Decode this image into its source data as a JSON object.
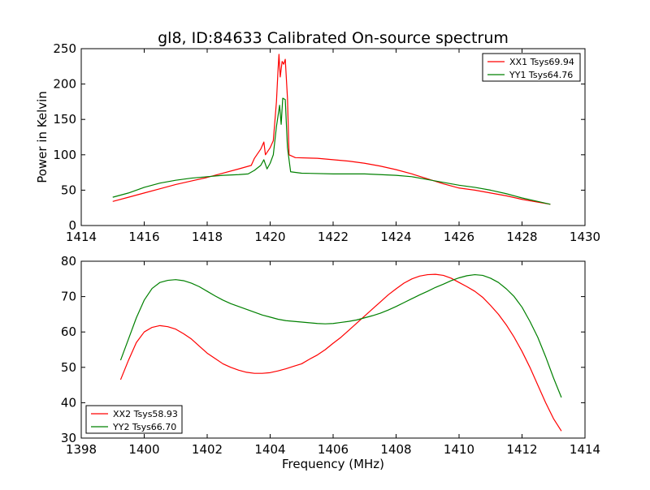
{
  "figure": {
    "title": "gl8, ID:84633 Calibrated On-source spectrum",
    "xlabel": "Frequency (MHz)",
    "ylabel": "Power in Kelvin"
  },
  "chart_data": [
    {
      "type": "line",
      "title": "gl8, ID:84633 Calibrated On-source spectrum",
      "xlabel": "",
      "ylabel": "Power in Kelvin",
      "xlim": [
        1414,
        1430
      ],
      "ylim": [
        0,
        250
      ],
      "xticks": [
        1414,
        1416,
        1418,
        1420,
        1422,
        1424,
        1426,
        1428,
        1430
      ],
      "yticks": [
        0,
        50,
        100,
        150,
        200,
        250
      ],
      "legend_position": "top-right",
      "grid": false,
      "series": [
        {
          "name": "XX1 Tsys69.94",
          "color": "#ff0000",
          "points": [
            [
              1415.0,
              34
            ],
            [
              1415.5,
              40
            ],
            [
              1416.0,
              46
            ],
            [
              1416.5,
              52
            ],
            [
              1417.0,
              58
            ],
            [
              1417.5,
              63
            ],
            [
              1418.0,
              68
            ],
            [
              1418.5,
              74
            ],
            [
              1419.0,
              80
            ],
            [
              1419.4,
              85
            ],
            [
              1419.5,
              95
            ],
            [
              1419.7,
              108
            ],
            [
              1419.8,
              118
            ],
            [
              1419.85,
              100
            ],
            [
              1420.0,
              110
            ],
            [
              1420.1,
              120
            ],
            [
              1420.2,
              175
            ],
            [
              1420.25,
              220
            ],
            [
              1420.28,
              242
            ],
            [
              1420.32,
              210
            ],
            [
              1420.38,
              232
            ],
            [
              1420.43,
              228
            ],
            [
              1420.48,
              235
            ],
            [
              1420.55,
              180
            ],
            [
              1420.6,
              100
            ],
            [
              1420.8,
              96
            ],
            [
              1421.5,
              95
            ],
            [
              1422.0,
              93
            ],
            [
              1422.5,
              91
            ],
            [
              1423.0,
              88
            ],
            [
              1423.5,
              84
            ],
            [
              1424.0,
              79
            ],
            [
              1424.5,
              73
            ],
            [
              1425.0,
              66
            ],
            [
              1425.5,
              59
            ],
            [
              1426.0,
              53
            ],
            [
              1426.5,
              50
            ],
            [
              1427.0,
              46
            ],
            [
              1427.5,
              42
            ],
            [
              1428.0,
              37
            ],
            [
              1428.5,
              33
            ],
            [
              1428.9,
              30
            ]
          ]
        },
        {
          "name": "YY1 Tsys64.76",
          "color": "#008000",
          "points": [
            [
              1415.0,
              40
            ],
            [
              1415.5,
              46
            ],
            [
              1416.0,
              54
            ],
            [
              1416.5,
              60
            ],
            [
              1417.0,
              64
            ],
            [
              1417.5,
              67
            ],
            [
              1418.0,
              69
            ],
            [
              1418.5,
              71
            ],
            [
              1419.0,
              72
            ],
            [
              1419.3,
              73
            ],
            [
              1419.5,
              78
            ],
            [
              1419.7,
              85
            ],
            [
              1419.8,
              93
            ],
            [
              1419.9,
              80
            ],
            [
              1420.0,
              88
            ],
            [
              1420.1,
              100
            ],
            [
              1420.2,
              140
            ],
            [
              1420.3,
              170
            ],
            [
              1420.35,
              143
            ],
            [
              1420.4,
              180
            ],
            [
              1420.48,
              178
            ],
            [
              1420.55,
              110
            ],
            [
              1420.65,
              76
            ],
            [
              1421.0,
              74
            ],
            [
              1422.0,
              73
            ],
            [
              1423.0,
              73
            ],
            [
              1424.0,
              71
            ],
            [
              1424.5,
              69
            ],
            [
              1425.0,
              65
            ],
            [
              1425.5,
              61
            ],
            [
              1426.0,
              57
            ],
            [
              1426.5,
              54
            ],
            [
              1427.0,
              50
            ],
            [
              1427.5,
              45
            ],
            [
              1428.0,
              39
            ],
            [
              1428.5,
              34
            ],
            [
              1428.9,
              30
            ]
          ]
        }
      ]
    },
    {
      "type": "line",
      "title": "",
      "xlabel": "Frequency (MHz)",
      "ylabel": "",
      "xlim": [
        1398,
        1414
      ],
      "ylim": [
        30,
        80
      ],
      "xticks": [
        1398,
        1400,
        1402,
        1404,
        1406,
        1408,
        1410,
        1412,
        1414
      ],
      "yticks": [
        30,
        40,
        50,
        60,
        70,
        80
      ],
      "legend_position": "lower-left",
      "grid": false,
      "series": [
        {
          "name": "XX2 Tsys58.93",
          "color": "#ff0000",
          "points": [
            [
              1399.25,
              46.5
            ],
            [
              1399.5,
              52
            ],
            [
              1399.75,
              57
            ],
            [
              1400.0,
              60
            ],
            [
              1400.25,
              61.3
            ],
            [
              1400.5,
              61.8
            ],
            [
              1400.75,
              61.5
            ],
            [
              1401.0,
              60.8
            ],
            [
              1401.25,
              59.5
            ],
            [
              1401.5,
              58
            ],
            [
              1401.75,
              56
            ],
            [
              1402.0,
              54
            ],
            [
              1402.25,
              52.5
            ],
            [
              1402.5,
              51
            ],
            [
              1402.75,
              50
            ],
            [
              1403.0,
              49.2
            ],
            [
              1403.25,
              48.6
            ],
            [
              1403.5,
              48.3
            ],
            [
              1403.75,
              48.3
            ],
            [
              1404.0,
              48.5
            ],
            [
              1404.25,
              49
            ],
            [
              1404.5,
              49.6
            ],
            [
              1404.75,
              50.3
            ],
            [
              1405.0,
              51
            ],
            [
              1405.25,
              52.3
            ],
            [
              1405.5,
              53.5
            ],
            [
              1405.75,
              55
            ],
            [
              1406.0,
              56.8
            ],
            [
              1406.25,
              58.5
            ],
            [
              1406.5,
              60.5
            ],
            [
              1406.75,
              62.5
            ],
            [
              1407.0,
              64.5
            ],
            [
              1407.25,
              66.5
            ],
            [
              1407.5,
              68.5
            ],
            [
              1407.75,
              70.5
            ],
            [
              1408.0,
              72.2
            ],
            [
              1408.25,
              73.8
            ],
            [
              1408.5,
              75
            ],
            [
              1408.75,
              75.8
            ],
            [
              1409.0,
              76.2
            ],
            [
              1409.25,
              76.3
            ],
            [
              1409.5,
              76
            ],
            [
              1409.75,
              75.2
            ],
            [
              1410.0,
              74
            ],
            [
              1410.25,
              72.8
            ],
            [
              1410.5,
              71.5
            ],
            [
              1410.75,
              69.8
            ],
            [
              1411.0,
              67.5
            ],
            [
              1411.25,
              65
            ],
            [
              1411.5,
              62
            ],
            [
              1411.75,
              58.5
            ],
            [
              1412.0,
              54.5
            ],
            [
              1412.25,
              50
            ],
            [
              1412.5,
              45
            ],
            [
              1412.75,
              40
            ],
            [
              1413.0,
              35.5
            ],
            [
              1413.25,
              32
            ]
          ]
        },
        {
          "name": "YY2 Tsys66.70",
          "color": "#008000",
          "points": [
            [
              1399.25,
              52
            ],
            [
              1399.5,
              58
            ],
            [
              1399.75,
              64
            ],
            [
              1400.0,
              69
            ],
            [
              1400.25,
              72.3
            ],
            [
              1400.5,
              74
            ],
            [
              1400.75,
              74.6
            ],
            [
              1401.0,
              74.8
            ],
            [
              1401.25,
              74.5
            ],
            [
              1401.5,
              73.8
            ],
            [
              1401.75,
              72.8
            ],
            [
              1402.0,
              71.5
            ],
            [
              1402.25,
              70.2
            ],
            [
              1402.5,
              69
            ],
            [
              1402.75,
              68
            ],
            [
              1403.0,
              67.2
            ],
            [
              1403.25,
              66.4
            ],
            [
              1403.5,
              65.6
            ],
            [
              1403.75,
              64.8
            ],
            [
              1404.0,
              64.2
            ],
            [
              1404.25,
              63.6
            ],
            [
              1404.5,
              63.2
            ],
            [
              1404.75,
              63
            ],
            [
              1405.0,
              62.8
            ],
            [
              1405.25,
              62.6
            ],
            [
              1405.5,
              62.4
            ],
            [
              1405.75,
              62.3
            ],
            [
              1406.0,
              62.4
            ],
            [
              1406.25,
              62.7
            ],
            [
              1406.5,
              63
            ],
            [
              1406.75,
              63.4
            ],
            [
              1407.0,
              64
            ],
            [
              1407.25,
              64.6
            ],
            [
              1407.5,
              65.3
            ],
            [
              1407.75,
              66.2
            ],
            [
              1408.0,
              67.2
            ],
            [
              1408.25,
              68.3
            ],
            [
              1408.5,
              69.4
            ],
            [
              1408.75,
              70.5
            ],
            [
              1409.0,
              71.5
            ],
            [
              1409.25,
              72.6
            ],
            [
              1409.5,
              73.5
            ],
            [
              1409.75,
              74.5
            ],
            [
              1410.0,
              75.3
            ],
            [
              1410.25,
              75.9
            ],
            [
              1410.5,
              76.2
            ],
            [
              1410.75,
              76
            ],
            [
              1411.0,
              75.2
            ],
            [
              1411.25,
              74
            ],
            [
              1411.5,
              72.2
            ],
            [
              1411.75,
              70
            ],
            [
              1412.0,
              67
            ],
            [
              1412.25,
              63
            ],
            [
              1412.5,
              58.5
            ],
            [
              1412.75,
              53
            ],
            [
              1413.0,
              47
            ],
            [
              1413.25,
              41.5
            ]
          ]
        }
      ]
    }
  ]
}
